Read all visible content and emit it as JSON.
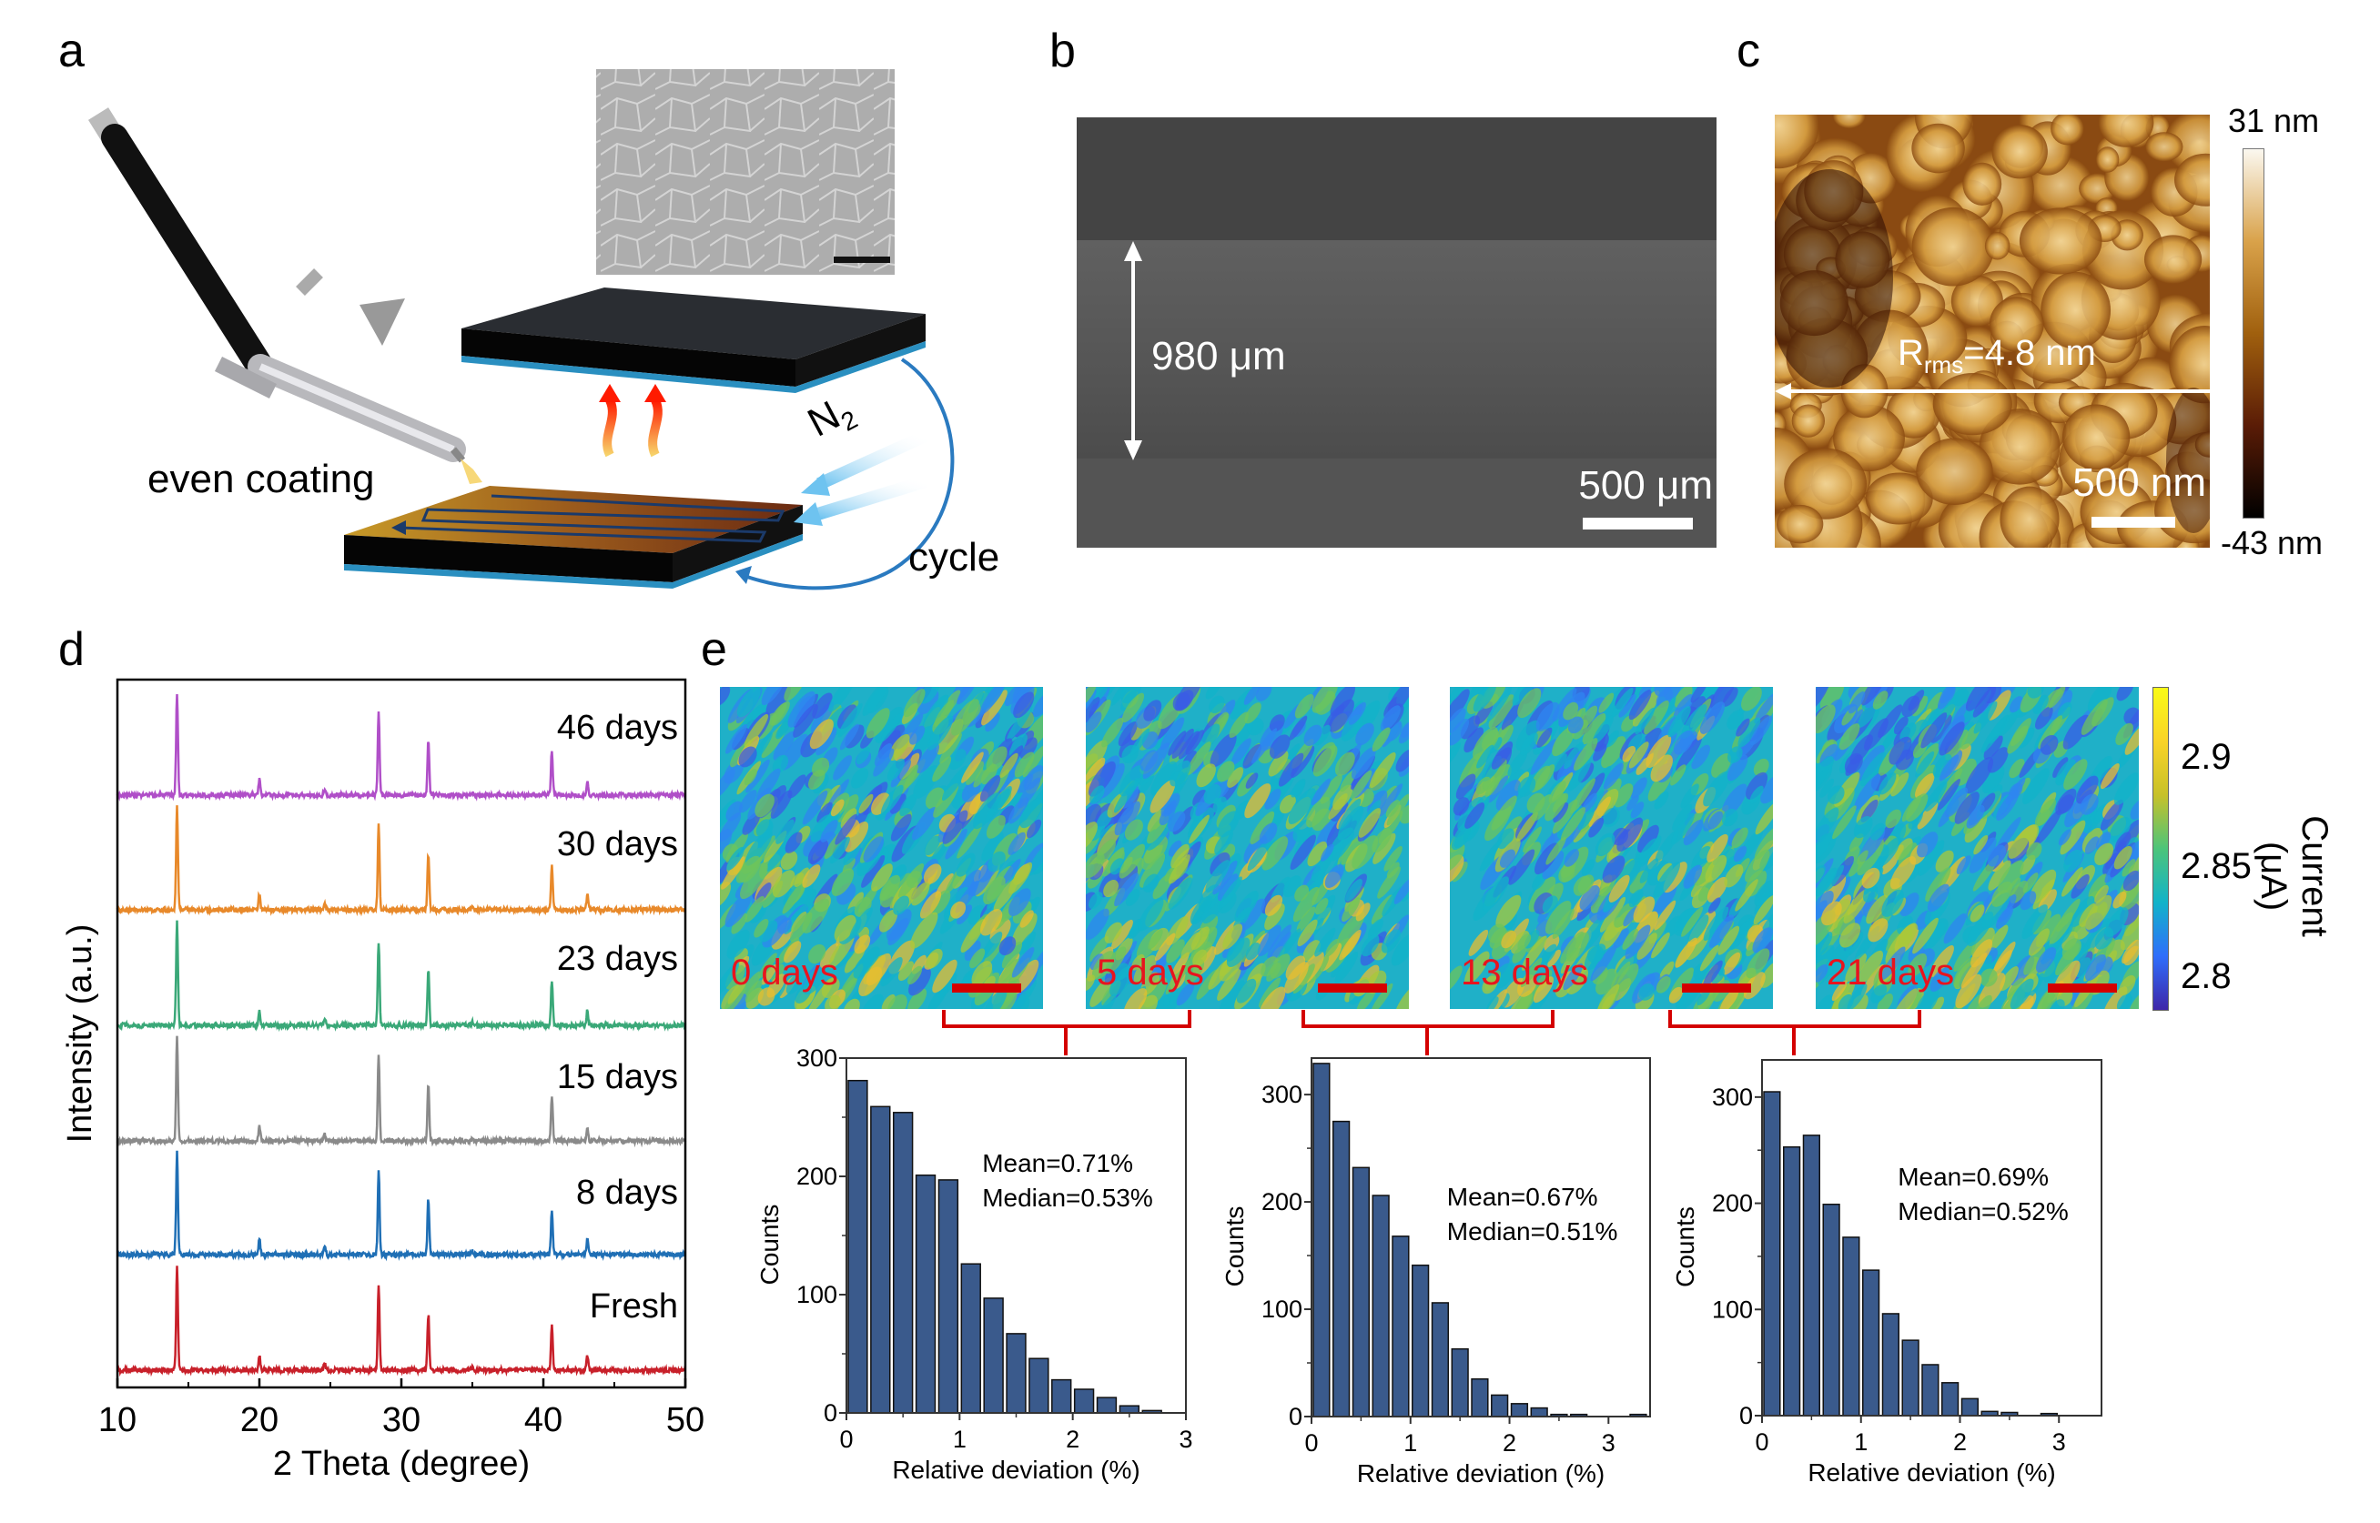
{
  "panels": {
    "a": {
      "letter": "a",
      "coating_label": "even coating",
      "gas_label": "N",
      "gas_subscript": "2",
      "cycle_label": "cycle"
    },
    "b": {
      "letter": "b",
      "thickness_label": "980 μm",
      "scale_label": "500 μm"
    },
    "c": {
      "letter": "c",
      "roughness_prefix": "R",
      "roughness_subscript": "rms",
      "roughness_value": "=4.8 nm",
      "scale_label": "500 nm",
      "colorbar_max": "31 nm",
      "colorbar_min": "-43 nm"
    },
    "d": {
      "letter": "d"
    },
    "e": {
      "letter": "e",
      "maps": [
        {
          "label": "0 days"
        },
        {
          "label": "5 days"
        },
        {
          "label": "13 days"
        },
        {
          "label": "21 days"
        }
      ],
      "colorbar": {
        "label": "Current (μA)",
        "ticks": [
          "2.9",
          "2.85",
          "2.8"
        ],
        "colormap": [
          "#3e26a8",
          "#2f6efb",
          "#12b3c9",
          "#4cc47a",
          "#c7c129",
          "#f9d327",
          "#f9fb15"
        ]
      },
      "label_color": "#e8141e"
    }
  },
  "chart_data": [
    {
      "id": "xrd",
      "type": "line",
      "xlabel": "2 Theta (degree)",
      "ylabel": "Intensity (a.u.)",
      "xlim": [
        10,
        50
      ],
      "xticks": [
        "10",
        "20",
        "30",
        "40",
        "50"
      ],
      "yticks": false,
      "grid": false,
      "peaks": [
        {
          "two_theta": 14.2,
          "relative_intensity": 100
        },
        {
          "two_theta": 20.0,
          "relative_intensity": 15
        },
        {
          "two_theta": 24.6,
          "relative_intensity": 7
        },
        {
          "two_theta": 28.4,
          "relative_intensity": 82
        },
        {
          "two_theta": 31.9,
          "relative_intensity": 54
        },
        {
          "two_theta": 35.0,
          "relative_intensity": 3
        },
        {
          "two_theta": 40.6,
          "relative_intensity": 44
        },
        {
          "two_theta": 43.1,
          "relative_intensity": 14
        }
      ],
      "series": [
        {
          "name": "46 days",
          "color": "#b04fc8"
        },
        {
          "name": "30 days",
          "color": "#e8892a"
        },
        {
          "name": "23 days",
          "color": "#3aa878"
        },
        {
          "name": "15 days",
          "color": "#8a8a8a"
        },
        {
          "name": "8 days",
          "color": "#1f6fb5"
        },
        {
          "name": "Fresh",
          "color": "#c8202a"
        }
      ]
    },
    {
      "id": "hist-0-5",
      "type": "bar",
      "xlabel": "Relative deviation (%)",
      "ylabel": "Counts",
      "xlim": [
        0,
        3
      ],
      "ylim": [
        0,
        300
      ],
      "xticks": [
        "0",
        "1",
        "2",
        "3"
      ],
      "yticks": [
        "0",
        "100",
        "200",
        "300"
      ],
      "bin_width": 0.2,
      "values": [
        281,
        259,
        254,
        201,
        197,
        126,
        97,
        67,
        46,
        28,
        20,
        13,
        6,
        2
      ],
      "annotation": [
        "Mean=0.71%",
        "Median=0.53%"
      ],
      "bar_color": "#3a5a8c"
    },
    {
      "id": "hist-5-13",
      "type": "bar",
      "xlabel": "Relative deviation (%)",
      "ylabel": "Counts",
      "xlim": [
        0,
        3.42
      ],
      "ylim": [
        0,
        334
      ],
      "xticks": [
        "0",
        "1",
        "2",
        "3"
      ],
      "yticks": [
        "0",
        "100",
        "200",
        "300"
      ],
      "bin_width": 0.2,
      "values": [
        329,
        275,
        232,
        206,
        168,
        141,
        106,
        63,
        35,
        20,
        12,
        8,
        2,
        2,
        0,
        0,
        2
      ],
      "annotation": [
        "Mean=0.67%",
        "Median=0.51%"
      ],
      "bar_color": "#3a5a8c"
    },
    {
      "id": "hist-13-21",
      "type": "bar",
      "xlabel": "Relative deviation (%)",
      "ylabel": "Counts",
      "xlim": [
        0,
        3.43
      ],
      "ylim": [
        0,
        335
      ],
      "xticks": [
        "0",
        "1",
        "2",
        "3"
      ],
      "yticks": [
        "0",
        "100",
        "200",
        "300"
      ],
      "bin_width": 0.2,
      "values": [
        305,
        253,
        264,
        199,
        168,
        137,
        96,
        71,
        48,
        31,
        16,
        4,
        3,
        0,
        2
      ],
      "annotation": [
        "Mean=0.69%",
        "Median=0.52%"
      ],
      "bar_color": "#3a5a8c"
    }
  ]
}
